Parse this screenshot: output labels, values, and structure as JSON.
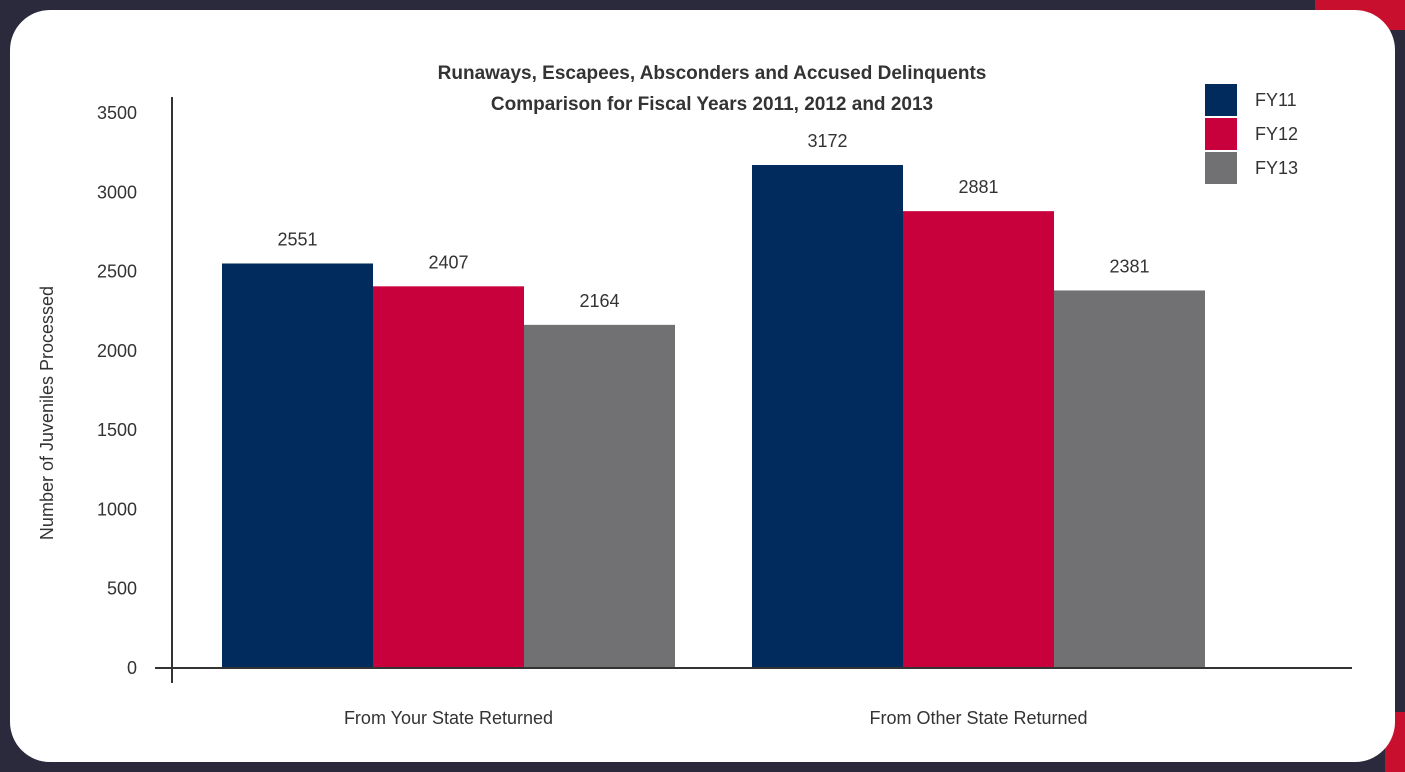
{
  "chart_data": {
    "type": "bar",
    "title": "Runaways, Escapees, Absconders and Accused Delinquents",
    "subtitle": "Comparison for Fiscal Years 2011, 2012 and 2013",
    "xlabel": "",
    "ylabel": "Number of Juveniles Processed",
    "ylim": [
      0,
      3500
    ],
    "yticks": [
      "0",
      "500",
      "1000",
      "1500",
      "2000",
      "2500",
      "3000",
      "3500"
    ],
    "ytick_values": [
      0,
      500,
      1000,
      1500,
      2000,
      2500,
      3000,
      3500
    ],
    "categories": [
      "From Your State Returned",
      "From Other State Returned"
    ],
    "series": [
      {
        "name": "FY11",
        "values": [
          2551,
          3172
        ],
        "color": "#002b5c"
      },
      {
        "name": "FY12",
        "values": [
          2407,
          2881
        ],
        "color": "#c8003c"
      },
      {
        "name": "FY13",
        "values": [
          2164,
          2381
        ],
        "color": "#717173"
      }
    ],
    "grid": false,
    "legend": "top-right"
  },
  "colors": {
    "frame": "#2b2a3d",
    "accent": "#c8102e",
    "panel": "#ffffff",
    "axis": "#333333"
  }
}
